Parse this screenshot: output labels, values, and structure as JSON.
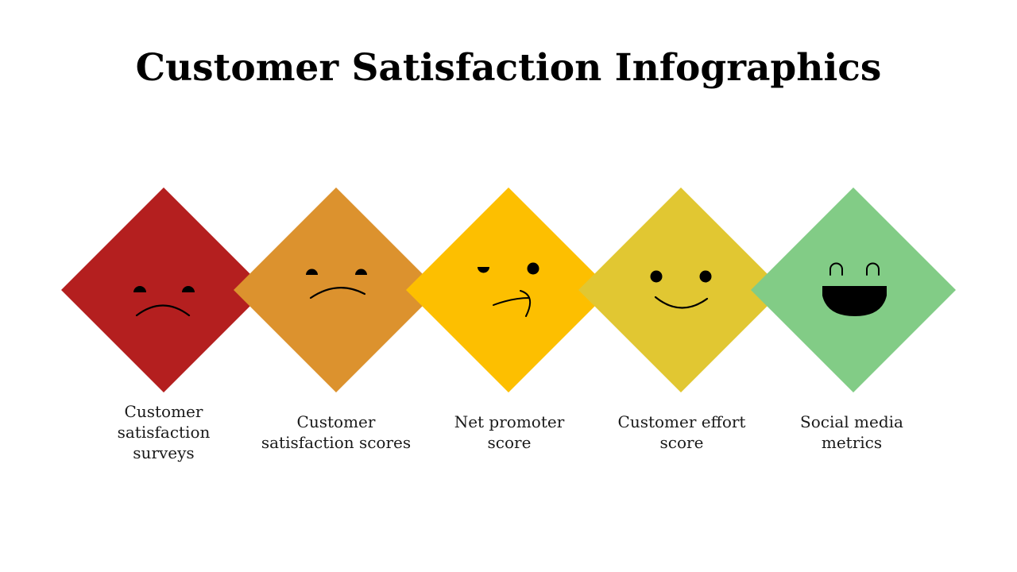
{
  "title": "Customer Satisfaction Infographics",
  "items": [
    {
      "label": "Customer\nsatisfaction\nsurveys",
      "color": "#b41f1f",
      "face": "sad-face-icon"
    },
    {
      "label": "Customer\nsatisfaction scores",
      "color": "#dc922e",
      "face": "frown-face-icon"
    },
    {
      "label": "Net promoter\nscore",
      "color": "#fdbf00",
      "face": "skeptical-face-icon"
    },
    {
      "label": "Customer effort\nscore",
      "color": "#e1c732",
      "face": "smile-face-icon"
    },
    {
      "label": "Social media\nmetrics",
      "color": "#82cc86",
      "face": "laughing-face-icon"
    }
  ]
}
